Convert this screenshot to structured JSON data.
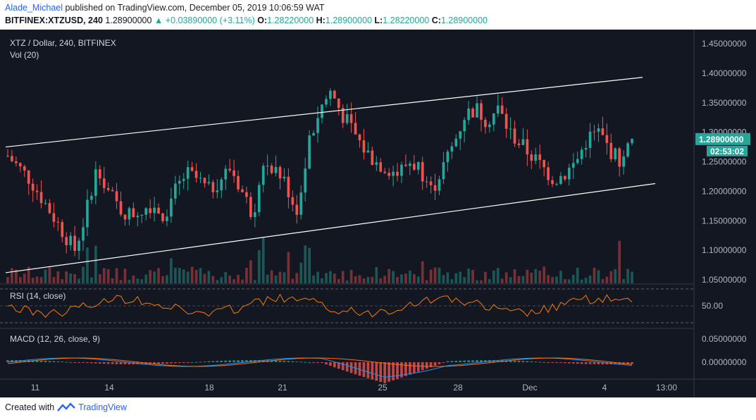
{
  "header": {
    "author": "Alade_Michael",
    "published_text": "published on TradingView.com, December 05, 2019 10:06:59 WAT",
    "symbol": "BITFINEX:XTZUSD, 240",
    "last": "1.28900000",
    "change": "+0.03890000 (+3.11%)",
    "o_label": "O:",
    "o": "1.28220000",
    "h_label": "H:",
    "h": "1.28900000",
    "l_label": "L:",
    "l": "1.28220000",
    "c_label": "C:",
    "c": "1.28900000"
  },
  "chart": {
    "legend_title": "XTZ / Dollar, 240, BITFINEX",
    "vol_label": "Vol (20)",
    "rsi_label": "RSI (14, close)",
    "macd_label": "MACD (12, 26, close, 9)",
    "price_axis": [
      "1.45000000",
      "1.40000000",
      "1.35000000",
      "1.30000000",
      "1.25000000",
      "1.20000000",
      "1.15000000",
      "1.10000000",
      "1.05000000"
    ],
    "last_price_label": "1.28900000",
    "countdown_label": "02:53:02",
    "rsi_axis": [
      "50.00"
    ],
    "macd_axis": [
      "0.05000000",
      "0.00000000"
    ],
    "time_axis": [
      "11",
      "14",
      "18",
      "21",
      "25",
      "28",
      "Dec",
      "4",
      "13:00"
    ],
    "colors": {
      "up": "#26a69a",
      "down": "#ef5350",
      "background": "#131722",
      "rsi_line": "#f57c00",
      "macd_line": "#2196f3",
      "signal_line": "#ff6d00"
    }
  },
  "chart_data": {
    "type": "candlestick",
    "symbol": "XTZ / Dollar",
    "exchange": "BITFINEX",
    "interval": "240",
    "ylim": [
      1.05,
      1.45
    ],
    "x": [
      "11",
      "14",
      "18",
      "21",
      "25",
      "28",
      "Dec",
      "4",
      "13:00"
    ],
    "close_path_approx": [
      1.26,
      1.24,
      1.22,
      1.19,
      1.16,
      1.13,
      1.1,
      1.16,
      1.25,
      1.2,
      1.17,
      1.16,
      1.17,
      1.18,
      1.16,
      1.2,
      1.23,
      1.22,
      1.2,
      1.22,
      1.24,
      1.2,
      1.16,
      1.25,
      1.24,
      1.21,
      1.16,
      1.28,
      1.34,
      1.37,
      1.33,
      1.3,
      1.27,
      1.25,
      1.24,
      1.23,
      1.25,
      1.24,
      1.2,
      1.24,
      1.28,
      1.33,
      1.34,
      1.32,
      1.34,
      1.3,
      1.28,
      1.26,
      1.24,
      1.22,
      1.23,
      1.25,
      1.29,
      1.3,
      1.27,
      1.25,
      1.289
    ],
    "channel_upper": [
      [
        0,
        1.275
      ],
      [
        1,
        1.393
      ]
    ],
    "channel_lower": [
      [
        0,
        1.062
      ],
      [
        1,
        1.213
      ]
    ],
    "last_price": 1.289,
    "rsi_level": 50.0
  }
}
